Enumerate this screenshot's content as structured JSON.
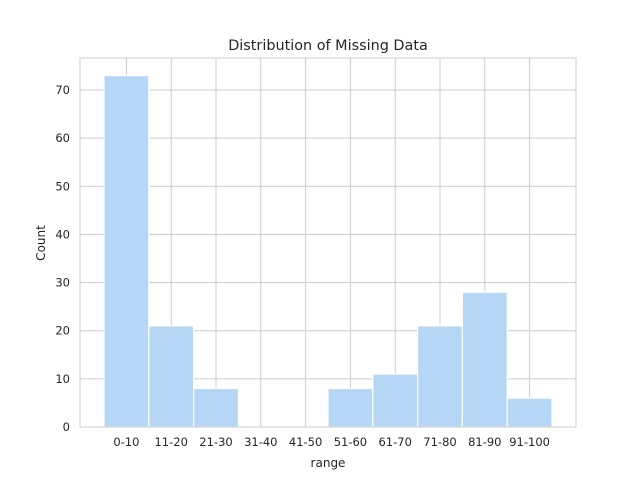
{
  "chart_data": {
    "type": "bar",
    "title": "Distribution of Missing Data",
    "xlabel": "range",
    "ylabel": "Count",
    "categories": [
      "0-10",
      "11-20",
      "21-30",
      "31-40",
      "41-50",
      "51-60",
      "61-70",
      "71-80",
      "81-90",
      "91-100"
    ],
    "values": [
      73,
      21,
      8,
      0,
      0,
      8,
      11,
      21,
      28,
      6
    ],
    "ylim": [
      0,
      76.65
    ],
    "yticks": [
      0,
      10,
      20,
      30,
      40,
      50,
      60,
      70
    ],
    "grid": true,
    "bar_color": "#b6d6f5",
    "grid_color": "#cccccc"
  }
}
